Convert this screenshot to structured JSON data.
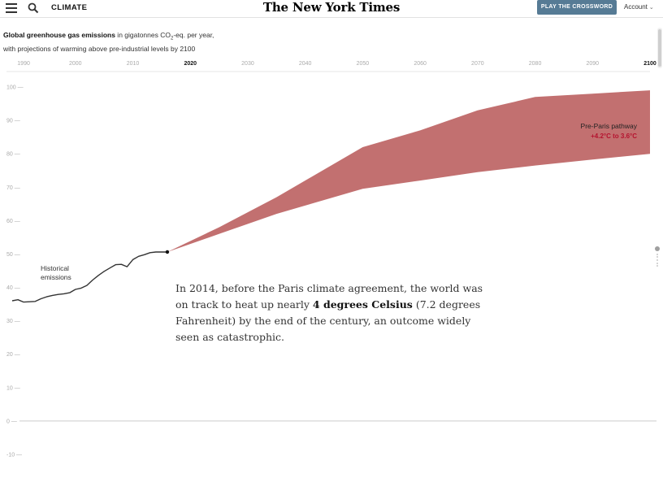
{
  "nav": {
    "section": "CLIMATE",
    "logo": "The New York Times",
    "crossword_button": "PLAY THE CROSSWORD",
    "account_label": "Account"
  },
  "chart_header": {
    "title_bold": "Global greenhouse gas emissions",
    "title_rest_a": " in gigatonnes CO",
    "title_sub": "2",
    "title_rest_b": "-eq. per year,",
    "line2": "with projections of warming above pre-industrial levels by 2100"
  },
  "chart_data": {
    "type": "area",
    "x_ticks": [
      "1990",
      "2000",
      "2010",
      "2020",
      "2030",
      "2040",
      "2050",
      "2060",
      "2070",
      "2080",
      "2090",
      "2100"
    ],
    "x_tick_values": [
      1990,
      2000,
      2010,
      2020,
      2030,
      2040,
      2050,
      2060,
      2070,
      2080,
      2090,
      2100
    ],
    "x_bold_ticks": [
      2020,
      2100
    ],
    "xlim": [
      1989,
      2100
    ],
    "y_ticks": [
      -10,
      0,
      10,
      20,
      30,
      40,
      50,
      60,
      70,
      80,
      90,
      100
    ],
    "y_tick_labels": [
      "-10",
      "0",
      "10",
      "20",
      "30",
      "40",
      "50",
      "60",
      "70",
      "80",
      "90",
      "100"
    ],
    "ylim": [
      -10,
      100
    ],
    "historical": {
      "label_line1": "Historical",
      "label_line2": "emissions",
      "x": [
        1989,
        1990,
        1991,
        1992,
        1993,
        1994,
        1995,
        1996,
        1997,
        1998,
        1999,
        2000,
        2001,
        2002,
        2003,
        2004,
        2005,
        2006,
        2007,
        2008,
        2009,
        2010,
        2011,
        2012,
        2013,
        2014,
        2015,
        2016
      ],
      "y": [
        36,
        36.3,
        35.6,
        35.7,
        35.8,
        36.6,
        37.2,
        37.6,
        37.9,
        38.1,
        38.4,
        39.4,
        39.8,
        40.6,
        42.2,
        43.6,
        44.8,
        45.8,
        46.8,
        46.9,
        46.2,
        48.3,
        49.3,
        49.8,
        50.4,
        50.6,
        50.6,
        50.6
      ]
    },
    "projection": {
      "label_line1": "Pre-Paris pathway",
      "label_line2": "+4.2°C to 3.6°C",
      "color": "#c27070",
      "x": [
        2016,
        2025,
        2035,
        2050,
        2060,
        2070,
        2080,
        2090,
        2100
      ],
      "upper": [
        50.6,
        58,
        67,
        82,
        87,
        93,
        97,
        98,
        99
      ],
      "lower": [
        50.6,
        56,
        62,
        69.5,
        72,
        74.5,
        76.5,
        78.3,
        80
      ]
    },
    "grid": false,
    "colors": {
      "line": "#333333",
      "label_red": "#b5122e",
      "axis": "#bbbbbb",
      "tick_text": "#999999"
    }
  },
  "narrative": {
    "part1": "In 2014, before the Paris climate agreement, the world was on track to heat up nearly ",
    "bold": "4 degrees Celsius",
    "part2": " (7.2 degrees Fahrenheit) by the end of the century, an outcome widely seen as catastrophic."
  }
}
